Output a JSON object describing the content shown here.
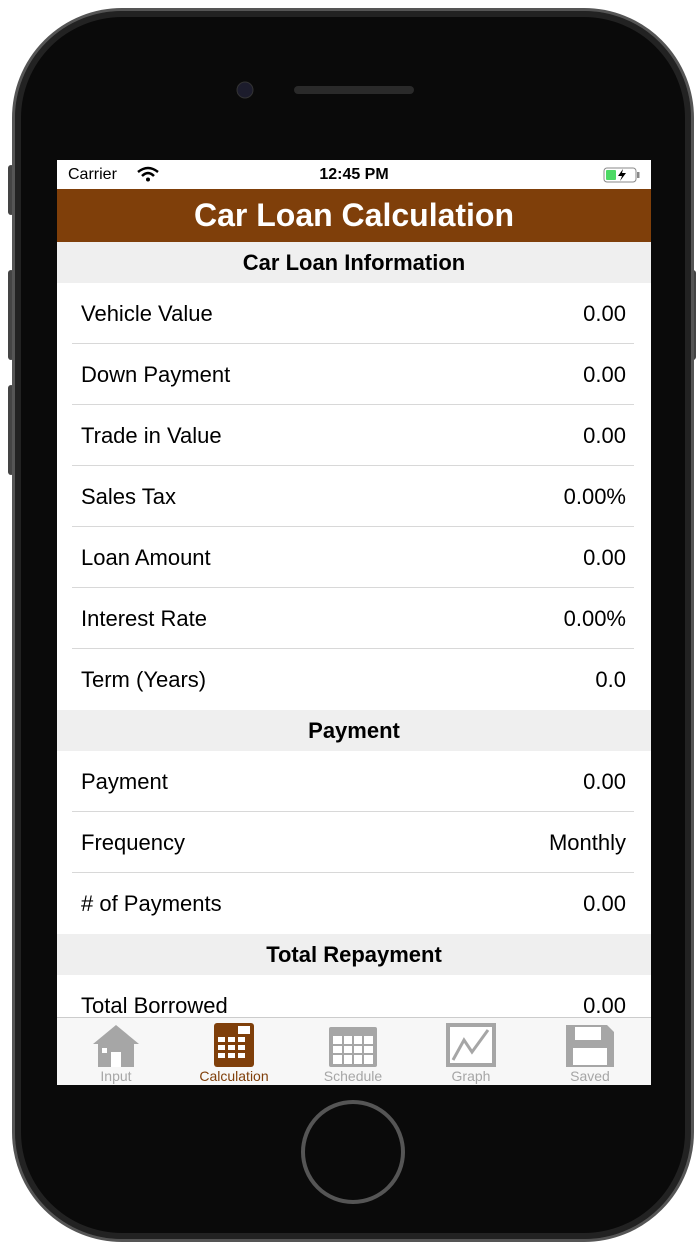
{
  "status_bar": {
    "carrier": "Carrier",
    "time": "12:45 PM"
  },
  "header": {
    "title": "Car Loan Calculation"
  },
  "sections": [
    {
      "title": "Car Loan Information",
      "rows": [
        {
          "label": "Vehicle Value",
          "value": "0.00"
        },
        {
          "label": "Down Payment",
          "value": "0.00"
        },
        {
          "label": "Trade in Value",
          "value": "0.00"
        },
        {
          "label": "Sales Tax",
          "value": "0.00%"
        },
        {
          "label": "Loan Amount",
          "value": "0.00"
        },
        {
          "label": "Interest Rate",
          "value": "0.00%"
        },
        {
          "label": "Term (Years)",
          "value": "0.0"
        }
      ]
    },
    {
      "title": "Payment",
      "rows": [
        {
          "label": "Payment",
          "value": "0.00"
        },
        {
          "label": "Frequency",
          "value": "Monthly"
        },
        {
          "label": "# of Payments",
          "value": "0.00"
        }
      ]
    },
    {
      "title": "Total Repayment",
      "rows": [
        {
          "label": "Total Borrowed",
          "value": "0.00"
        }
      ]
    }
  ],
  "tab_bar": {
    "tabs": [
      {
        "label": "Input",
        "active": false
      },
      {
        "label": "Calculation",
        "active": true
      },
      {
        "label": "Schedule",
        "active": false
      },
      {
        "label": "Graph",
        "active": false
      },
      {
        "label": "Saved",
        "active": false
      }
    ]
  }
}
